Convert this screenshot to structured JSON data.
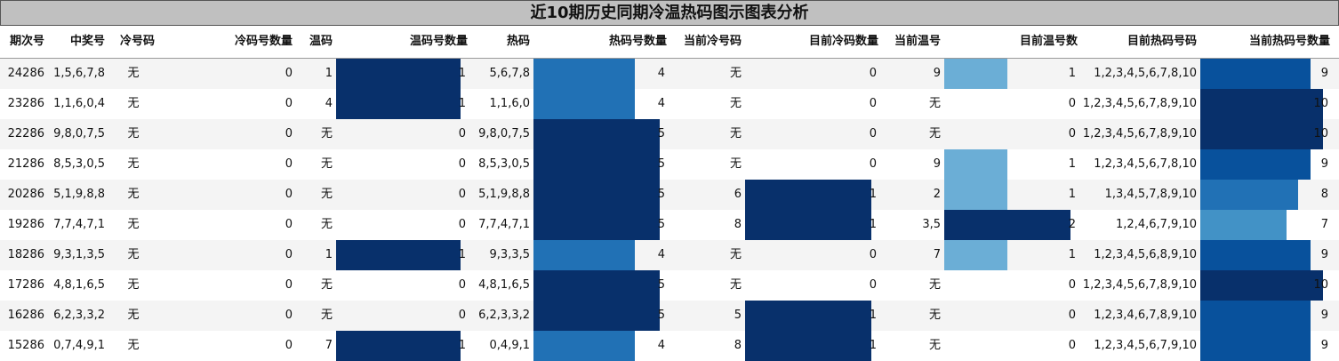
{
  "title": "近10期历史同期冷温热码图示图表分析",
  "headers": [
    "期次号",
    "中奖号",
    "冷号码",
    "冷码号数量",
    "温码",
    "温码号数量",
    "热码",
    "热码号数量",
    "当前冷号码",
    "目前冷码数量",
    "当前温号",
    "目前温号数",
    "目前热码号码",
    "当前热码号数量"
  ],
  "rows": [
    [
      "24286",
      "1,5,6,7,8",
      "无",
      "0",
      "1",
      "1",
      "5,6,7,8",
      "4",
      "无",
      "0",
      "9",
      "1",
      "1,2,3,4,5,6,7,8,10",
      "9"
    ],
    [
      "23286",
      "1,1,6,0,4",
      "无",
      "0",
      "4",
      "1",
      "1,1,6,0",
      "4",
      "无",
      "0",
      "无",
      "0",
      "1,2,3,4,5,6,7,8,9,10",
      "10"
    ],
    [
      "22286",
      "9,8,0,7,5",
      "无",
      "0",
      "无",
      "0",
      "9,8,0,7,5",
      "5",
      "无",
      "0",
      "无",
      "0",
      "1,2,3,4,5,6,7,8,9,10",
      "10"
    ],
    [
      "21286",
      "8,5,3,0,5",
      "无",
      "0",
      "无",
      "0",
      "8,5,3,0,5",
      "5",
      "无",
      "0",
      "9",
      "1",
      "1,2,3,4,5,6,7,8,10",
      "9"
    ],
    [
      "20286",
      "5,1,9,8,8",
      "无",
      "0",
      "无",
      "0",
      "5,1,9,8,8",
      "5",
      "6",
      "1",
      "2",
      "1",
      "1,3,4,5,7,8,9,10",
      "8"
    ],
    [
      "19286",
      "7,7,4,7,1",
      "无",
      "0",
      "无",
      "0",
      "7,7,4,7,1",
      "5",
      "8",
      "1",
      "3,5",
      "2",
      "1,2,4,6,7,9,10",
      "7"
    ],
    [
      "18286",
      "9,3,1,3,5",
      "无",
      "0",
      "1",
      "1",
      "9,3,3,5",
      "4",
      "无",
      "0",
      "7",
      "1",
      "1,2,3,4,5,6,8,9,10",
      "9"
    ],
    [
      "17286",
      "4,8,1,6,5",
      "无",
      "0",
      "无",
      "0",
      "4,8,1,6,5",
      "5",
      "无",
      "0",
      "无",
      "0",
      "1,2,3,4,5,6,7,8,9,10",
      "10"
    ],
    [
      "16286",
      "6,2,3,3,2",
      "无",
      "0",
      "无",
      "0",
      "6,2,3,3,2",
      "5",
      "5",
      "1",
      "无",
      "0",
      "1,2,3,4,6,7,8,9,10",
      "9"
    ],
    [
      "15286",
      "0,7,4,9,1",
      "无",
      "0",
      "7",
      "1",
      "0,4,9,1",
      "4",
      "8",
      "1",
      "无",
      "0",
      "1,2,3,4,5,6,7,9,10",
      "9"
    ]
  ],
  "chart_data": {
    "type": "table",
    "title": "近10期历史同期冷温热码图示图表分析",
    "columns": [
      "期次号",
      "中奖号",
      "冷号码",
      "冷码号数量",
      "温码",
      "温码号数量",
      "热码",
      "热码号数量",
      "当前冷号码",
      "目前冷码数量",
      "当前温号",
      "目前温号数",
      "目前热码号码",
      "当前热码号数量"
    ],
    "data_bars": {
      "温码号数量": {
        "values": [
          1,
          1,
          0,
          0,
          0,
          0,
          1,
          0,
          0,
          1
        ],
        "max": 1
      },
      "热码号数量": {
        "values": [
          4,
          4,
          5,
          5,
          5,
          5,
          4,
          5,
          5,
          4
        ],
        "max": 5
      },
      "目前冷码数量": {
        "values": [
          0,
          0,
          0,
          0,
          1,
          1,
          0,
          0,
          1,
          1
        ],
        "max": 1
      },
      "目前温号数": {
        "values": [
          1,
          0,
          0,
          1,
          1,
          2,
          1,
          0,
          0,
          0
        ],
        "max": 2
      },
      "当前热码号数量": {
        "values": [
          9,
          10,
          10,
          9,
          8,
          7,
          9,
          10,
          9,
          9
        ],
        "max": 10
      }
    },
    "colors": {
      "darkest": "#08306b",
      "dark": "#08519c",
      "mid": "#2171b5",
      "light": "#4292c6",
      "lightest": "#6baed6"
    }
  }
}
